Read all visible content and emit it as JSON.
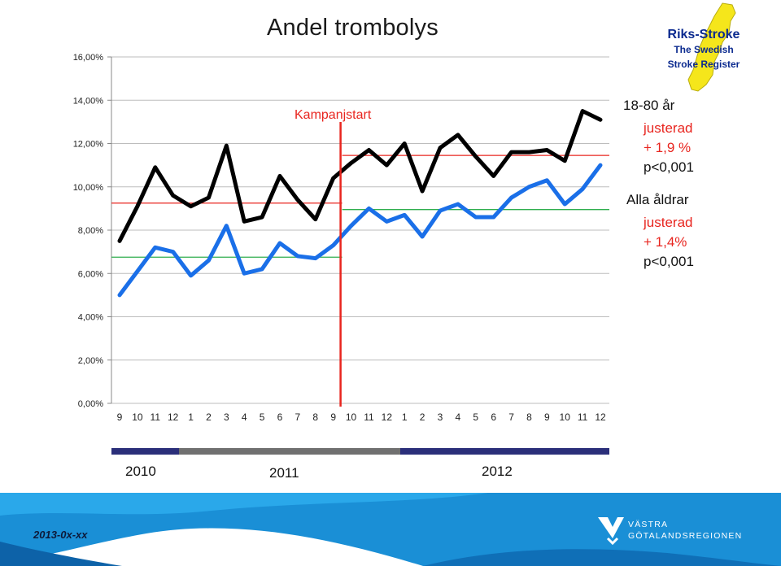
{
  "title": "Andel trombolys",
  "logo": {
    "line1": "Riks-Stroke",
    "line2": "The Swedish",
    "line3": "Stroke Register",
    "color": "#0b2a8f",
    "map_color": "#f5e61b"
  },
  "campaign_label": "Kampanjstart",
  "annotations": {
    "group1": "18-80 år",
    "group1_adj": "justerad",
    "group1_change": "+ 1,9 %",
    "group1_p": "p<0,001",
    "group2": "Alla åldrar",
    "group2_adj": "justerad",
    "group2_change": "+ 1,4%",
    "group2_p": "p<0,001"
  },
  "years": [
    "2010",
    "2011",
    "2012"
  ],
  "footer": {
    "date": "2013-0x-xx",
    "org_line1": "VÄSTRA",
    "org_line2": "GÖTALANDSREGIONEN"
  },
  "colors": {
    "black_series": "#000000",
    "blue_series": "#1a6fe8",
    "campaign": "#e8251f",
    "green_ref": "#2fae4e",
    "red_ref": "#e8251f",
    "footer_bg": "#1a8fd6"
  },
  "chart_data": {
    "type": "line",
    "categories": [
      "9",
      "10",
      "11",
      "12",
      "1",
      "2",
      "3",
      "4",
      "5",
      "6",
      "7",
      "8",
      "9",
      "10",
      "11",
      "12",
      "1",
      "2",
      "3",
      "4",
      "5",
      "6",
      "7",
      "8",
      "9",
      "10",
      "11",
      "12"
    ],
    "ylim": [
      0,
      16
    ],
    "yticks": [
      "0,00%",
      "2,00%",
      "4,00%",
      "6,00%",
      "8,00%",
      "10,00%",
      "12,00%",
      "14,00%",
      "16,00%"
    ],
    "grid": true,
    "series": [
      {
        "name": "18-80 år",
        "color": "#000000",
        "values": [
          7.5,
          9.1,
          10.9,
          9.6,
          9.1,
          9.5,
          11.9,
          8.4,
          8.6,
          10.5,
          9.4,
          8.5,
          10.4,
          11.1,
          11.7,
          11.0,
          12.0,
          9.8,
          11.8,
          12.4,
          11.4,
          10.5,
          11.6,
          11.6,
          11.7,
          11.2,
          13.5,
          13.1
        ]
      },
      {
        "name": "Alla åldrar",
        "color": "#1a6fe8",
        "values": [
          5.0,
          6.1,
          7.2,
          7.0,
          5.9,
          6.6,
          8.2,
          6.0,
          6.2,
          7.4,
          6.8,
          6.7,
          7.3,
          8.2,
          9.0,
          8.4,
          8.7,
          7.7,
          8.9,
          9.2,
          8.6,
          8.6,
          9.5,
          10.0,
          10.3,
          9.2,
          9.9,
          11.0
        ]
      }
    ],
    "campaign_start_index": 12.5,
    "reference_lines": [
      {
        "color": "#e8251f",
        "y": 9.25,
        "from_index": 0,
        "to_index": 12.5
      },
      {
        "color": "#e8251f",
        "y": 11.45,
        "from_index": 12.5,
        "to_index": 27
      },
      {
        "color": "#2fae4e",
        "y": 6.75,
        "from_index": 0,
        "to_index": 12.5
      },
      {
        "color": "#2fae4e",
        "y": 8.95,
        "from_index": 12.5,
        "to_index": 27
      }
    ],
    "year_bands": [
      {
        "label": "2010",
        "color": "#2b2f7a",
        "from_index": 0,
        "to_index": 3
      },
      {
        "label": "2011",
        "color": "#707070",
        "from_index": 4,
        "to_index": 15
      },
      {
        "label": "2012",
        "color": "#2b2f7a",
        "from_index": 16,
        "to_index": 27
      }
    ]
  }
}
